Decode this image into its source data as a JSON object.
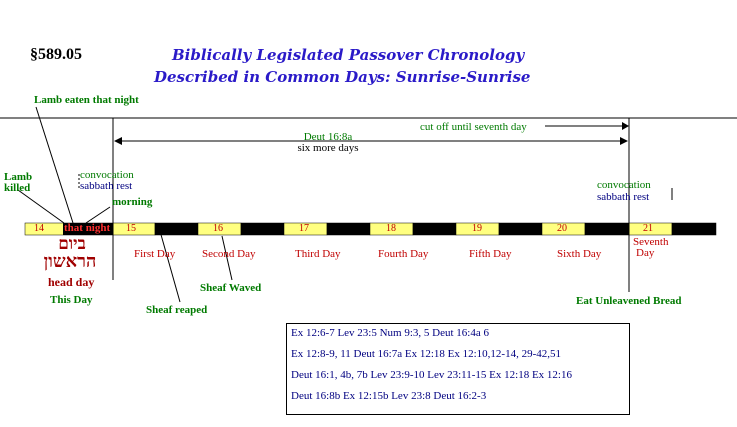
{
  "header": {
    "section": "§589.05",
    "title_line1": "Biblically Legislated Passover Chronology",
    "title_line2": "Described in Common Days: Sunrise-Sunrise"
  },
  "labels": {
    "lamb_eaten": "Lamb eaten that night",
    "lamb_killed_1": "Lamb",
    "lamb_killed_2": "killed",
    "convocation_left_1": "convocation",
    "convocation_left_2": "sabbath rest",
    "morning": "morning",
    "deut_top_1": "Deut 16:8a",
    "deut_top_2": "six more days",
    "cut_off": "cut off until seventh day",
    "convocation_right_1": "convocation",
    "convocation_right_2": "sabbath rest",
    "that_night": "that night",
    "hebrew_1": "ביום",
    "hebrew_2": "הראשון",
    "head_day": "head day",
    "this_day": "This Day",
    "sheaf_reaped": "Sheaf reaped",
    "sheaf_waved": "Sheaf Waved",
    "eat_unleavened": "Eat Unleavened Bread"
  },
  "days": [
    {
      "num": "14",
      "name": ""
    },
    {
      "num": "15",
      "name": "First Day"
    },
    {
      "num": "16",
      "name": "Second Day"
    },
    {
      "num": "17",
      "name": "Third Day"
    },
    {
      "num": "18",
      "name": "Fourth Day"
    },
    {
      "num": "19",
      "name": "Fifth Day"
    },
    {
      "num": "20",
      "name": "Sixth Day"
    },
    {
      "num": "21",
      "name": "Seventh"
    }
  ],
  "day21_name_line2": "Day",
  "references": [
    "Ex 12:6-7   Lev 23:5   Num 9:3, 5   Deut 16:4a 6",
    "Ex 12:8-9, 11   Deut 16:7a   Ex 12:18   Ex 12:10,12-14, 29-42,51",
    "Deut 16:1, 4b, 7b   Lev 23:9-10   Lev 23:11-15   Ex 12:18   Ex 12:16",
    "Deut 16:8b   Ex 12:15b   Lev 23:8  Deut 16:2-3"
  ],
  "colors": {
    "day_segment": "#ffff80",
    "night_segment": "#000000",
    "title": "#2a1ac8",
    "green": "#007a00",
    "red": "#c00000",
    "navy": "#000080"
  }
}
